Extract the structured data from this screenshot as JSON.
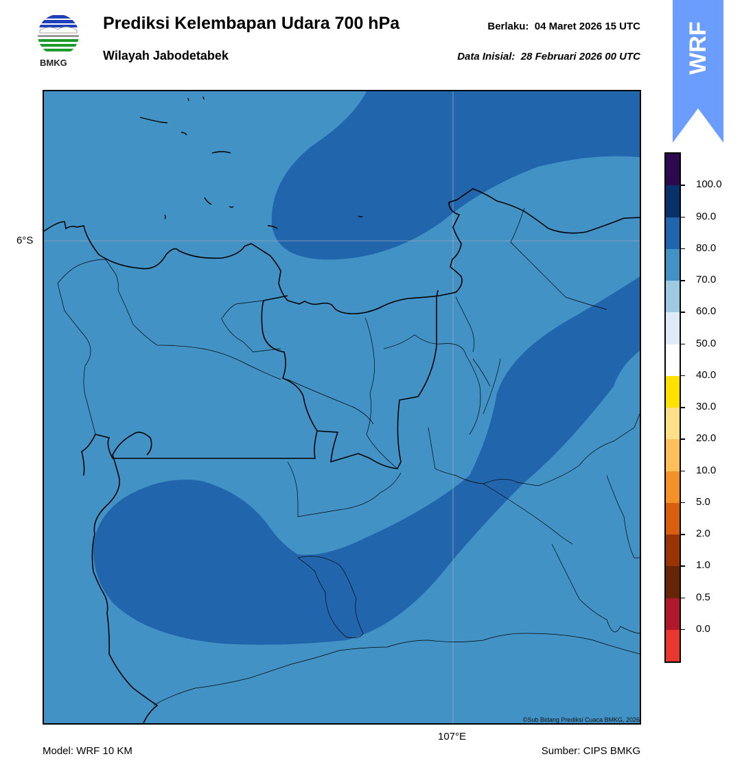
{
  "header": {
    "title": "Prediksi Kelembapan Udara 700 hPa",
    "subtitle": "Wilayah Jabodetabek",
    "valid_label": "Berlaku:",
    "valid_time": "04 Maret 2026 15 UTC",
    "init_label": "Data Inisial:",
    "init_time": "28 Februari 2026 00 UTC"
  },
  "logo": {
    "text": "BMKG",
    "icon": "bmkg-logo-icon"
  },
  "badge": {
    "text": "WRF",
    "color": "#6b9dff"
  },
  "map": {
    "lat_label": "6°S",
    "lon_label": "107°E",
    "copyright": "©Sub Bidang Prediksi Cuaca BMKG, 2026",
    "fill_colors": {
      "band_70_80": "#4292c6",
      "band_80_90": "#2166ac"
    }
  },
  "footer": {
    "model": "Model: WRF 10 KM",
    "source": "Sumber: CIPS BMKG"
  },
  "colorbar": {
    "labels": [
      "100.0",
      "90.0",
      "80.0",
      "70.0",
      "60.0",
      "50.0",
      "40.0",
      "30.0",
      "20.0",
      "10.0",
      "5.0",
      "2.0",
      "1.0",
      "0.5",
      "0.0"
    ],
    "colors_top_to_bottom": [
      "#2d0a4e",
      "#08306b",
      "#2166ac",
      "#4292c6",
      "#9ecae1",
      "#deebf7",
      "#ffffff",
      "#ffe100",
      "#ffe08a",
      "#fdbf5a",
      "#f4922a",
      "#d95f0e",
      "#993404",
      "#662506",
      "#b2182b",
      "#e8372e"
    ]
  }
}
